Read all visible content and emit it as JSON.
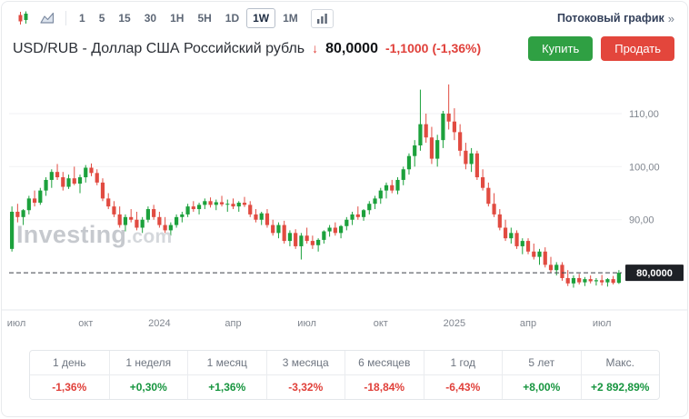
{
  "colors": {
    "candle_up": "#1ca13c",
    "candle_down": "#e14b41",
    "positive": "#17953f",
    "negative": "#e0403a",
    "buy": "#2fa043",
    "sell": "#e3463c",
    "price_badge_bg": "#1e2126"
  },
  "toolbar": {
    "intervals": [
      "1",
      "5",
      "15",
      "30",
      "1H",
      "5H",
      "1D",
      "1W",
      "1M"
    ],
    "active_interval": "1W",
    "streaming_link": "Потоковый график",
    "streaming_chevron": "»"
  },
  "header": {
    "title": "USD/RUB - Доллар США Российский рубль",
    "direction_arrow": "↓",
    "price": "80,0000",
    "change": "-1,1000",
    "change_pct": "(-1,36%)",
    "buy_label": "Купить",
    "sell_label": "Продать"
  },
  "watermark": {
    "brand": "Investing",
    "suffix": ".com"
  },
  "chart_data": {
    "type": "candlestick",
    "pair": "USD/RUB",
    "timeframe": "1W",
    "ylim": [
      73,
      116.5
    ],
    "y_ticks": [
      110,
      100,
      90
    ],
    "y_tick_labels": [
      "110,00",
      "100,00",
      "90,00"
    ],
    "last_price": 80.0,
    "last_price_label": "80,0000",
    "x_ticks": [
      {
        "i": 0,
        "label": "июл"
      },
      {
        "i": 13,
        "label": "окт"
      },
      {
        "i": 26,
        "label": "2024"
      },
      {
        "i": 39,
        "label": "апр"
      },
      {
        "i": 52,
        "label": "июл"
      },
      {
        "i": 65,
        "label": "окт"
      },
      {
        "i": 78,
        "label": "2025"
      },
      {
        "i": 91,
        "label": "апр"
      },
      {
        "i": 104,
        "label": "июл"
      }
    ],
    "candles": [
      [
        84.5,
        92.5,
        84,
        91.5
      ],
      [
        91.5,
        93,
        89.5,
        90.5
      ],
      [
        90.5,
        92,
        89,
        91.8
      ],
      [
        91.8,
        94.5,
        91,
        94
      ],
      [
        94,
        95.5,
        92.5,
        93.2
      ],
      [
        93.2,
        96,
        92.8,
        95.5
      ],
      [
        95.5,
        98,
        94.5,
        97.5
      ],
      [
        97.5,
        99.5,
        96,
        99
      ],
      [
        99,
        100.5,
        97.5,
        98
      ],
      [
        98,
        99,
        95.5,
        96.2
      ],
      [
        96.2,
        98.5,
        95.8,
        97.8
      ],
      [
        97.8,
        100,
        96.5,
        96.8
      ],
      [
        96.8,
        98.5,
        95,
        98
      ],
      [
        98,
        100.3,
        97,
        99.8
      ],
      [
        99.8,
        100.6,
        98.2,
        98.8
      ],
      [
        98.8,
        99.5,
        96.5,
        97
      ],
      [
        97,
        97.8,
        93.5,
        94
      ],
      [
        94,
        95,
        92,
        92.5
      ],
      [
        92.5,
        93.5,
        90.5,
        91
      ],
      [
        91,
        92.5,
        88.5,
        89
      ],
      [
        89,
        91,
        87.8,
        90.5
      ],
      [
        90.5,
        92,
        89.5,
        90
      ],
      [
        90,
        91.5,
        88,
        88.5
      ],
      [
        88.5,
        90.5,
        87.5,
        90
      ],
      [
        90,
        92.5,
        89.5,
        92
      ],
      [
        92,
        92.8,
        90,
        90.5
      ],
      [
        90.5,
        91.5,
        88.5,
        89
      ],
      [
        89,
        90.5,
        87.5,
        88
      ],
      [
        88,
        89.5,
        87,
        89
      ],
      [
        89,
        91,
        88.5,
        90.5
      ],
      [
        90.5,
        91.5,
        89.5,
        91
      ],
      [
        91,
        93,
        90.5,
        92.5
      ],
      [
        92.5,
        93.5,
        91.5,
        92
      ],
      [
        92,
        93.2,
        91,
        92.8
      ],
      [
        92.8,
        94,
        92,
        93.5
      ],
      [
        93.5,
        94.2,
        92.3,
        92.8
      ],
      [
        92.8,
        93.8,
        91.8,
        93.3
      ],
      [
        93.3,
        94.5,
        92.5,
        92.9
      ],
      [
        92.9,
        93.8,
        91.5,
        93
      ],
      [
        93,
        94,
        92,
        92.5
      ],
      [
        92.5,
        93.5,
        91.5,
        93.2
      ],
      [
        93.2,
        94.3,
        92.4,
        92.8
      ],
      [
        92.8,
        93.5,
        90.5,
        91
      ],
      [
        91,
        92,
        89.5,
        90
      ],
      [
        90,
        91.5,
        89,
        91.2
      ],
      [
        91.2,
        92,
        88.5,
        89
      ],
      [
        89,
        90,
        87,
        87.5
      ],
      [
        87.5,
        89.5,
        86.5,
        89
      ],
      [
        89,
        89.8,
        85.5,
        86
      ],
      [
        86,
        88,
        85,
        87.5
      ],
      [
        87.5,
        88.2,
        84.5,
        85
      ],
      [
        85,
        87.5,
        82.5,
        87
      ],
      [
        87,
        88.5,
        85.5,
        86
      ],
      [
        86,
        87,
        84.5,
        85.2
      ],
      [
        85.2,
        86.5,
        84,
        86.2
      ],
      [
        86.2,
        88,
        85.5,
        87.8
      ],
      [
        87.8,
        89,
        86.8,
        88.5
      ],
      [
        88.5,
        89.5,
        87,
        87.5
      ],
      [
        87.5,
        89,
        86.5,
        88.8
      ],
      [
        88.8,
        90.5,
        88,
        90
      ],
      [
        90,
        91.5,
        89,
        91
      ],
      [
        91,
        92.5,
        90,
        90.5
      ],
      [
        90.5,
        92,
        89.8,
        91.8
      ],
      [
        91.8,
        93.5,
        91,
        93
      ],
      [
        93,
        94.5,
        92,
        94
      ],
      [
        94,
        96,
        93,
        95.5
      ],
      [
        95.5,
        97,
        94,
        96.5
      ],
      [
        96.5,
        97.5,
        95,
        95.5
      ],
      [
        95.5,
        98,
        94.8,
        97.5
      ],
      [
        97.5,
        100,
        96.5,
        99.5
      ],
      [
        99.5,
        102.5,
        98.5,
        102
      ],
      [
        102,
        105,
        100,
        104
      ],
      [
        104,
        114.5,
        103,
        108
      ],
      [
        108,
        110,
        104.5,
        105.5
      ],
      [
        105.5,
        107.5,
        100.5,
        101.5
      ],
      [
        101.5,
        106,
        100,
        105
      ],
      [
        105,
        110.5,
        103.5,
        110
      ],
      [
        110,
        115.5,
        107,
        108.5
      ],
      [
        108.5,
        111,
        105,
        106.5
      ],
      [
        106.5,
        108,
        102,
        103
      ],
      [
        103,
        104.5,
        99.5,
        100.5
      ],
      [
        100.5,
        103.5,
        99,
        102.5
      ],
      [
        102.5,
        103,
        97.5,
        98
      ],
      [
        98,
        99.5,
        95.5,
        96
      ],
      [
        96,
        97,
        92.5,
        93
      ],
      [
        93,
        95,
        90.5,
        91
      ],
      [
        91,
        92,
        88,
        88.5
      ],
      [
        88.5,
        90,
        86,
        86.5
      ],
      [
        86.5,
        88.5,
        85.5,
        87.5
      ],
      [
        87.5,
        88,
        84.5,
        85
      ],
      [
        85,
        86.5,
        83.5,
        86
      ],
      [
        86,
        86.5,
        83.5,
        84
      ],
      [
        84,
        85.5,
        82.5,
        83
      ],
      [
        83,
        84.5,
        81.5,
        84
      ],
      [
        84,
        84.8,
        81,
        81.5
      ],
      [
        81.5,
        83,
        80,
        80.5
      ],
      [
        80.5,
        82,
        79.5,
        81.5
      ],
      [
        81.5,
        82,
        78.5,
        79
      ],
      [
        79,
        80.5,
        77.5,
        78
      ],
      [
        78,
        79.5,
        77.2,
        79
      ],
      [
        79,
        79.8,
        77.8,
        78.2
      ],
      [
        78.2,
        79.2,
        77.5,
        78.8
      ],
      [
        78.8,
        79.5,
        78,
        78.4
      ],
      [
        78.4,
        79,
        77.6,
        78.6
      ],
      [
        78.6,
        79.6,
        77.6,
        78.2
      ],
      [
        78.2,
        79,
        77.4,
        78.8
      ],
      [
        78.8,
        79.4,
        77.8,
        78.1
      ],
      [
        78.1,
        80.5,
        77.9,
        80
      ]
    ]
  },
  "performance": {
    "cells": [
      {
        "label": "1 день",
        "value": "-1,36%",
        "dir": "down"
      },
      {
        "label": "1 неделя",
        "value": "+0,30%",
        "dir": "up"
      },
      {
        "label": "1 месяц",
        "value": "+1,36%",
        "dir": "up"
      },
      {
        "label": "3 месяца",
        "value": "-3,32%",
        "dir": "down"
      },
      {
        "label": "6 месяцев",
        "value": "-18,84%",
        "dir": "down"
      },
      {
        "label": "1 год",
        "value": "-6,43%",
        "dir": "down"
      },
      {
        "label": "5 лет",
        "value": "+8,00%",
        "dir": "up"
      },
      {
        "label": "Макс.",
        "value": "+2 892,89%",
        "dir": "up"
      }
    ]
  }
}
